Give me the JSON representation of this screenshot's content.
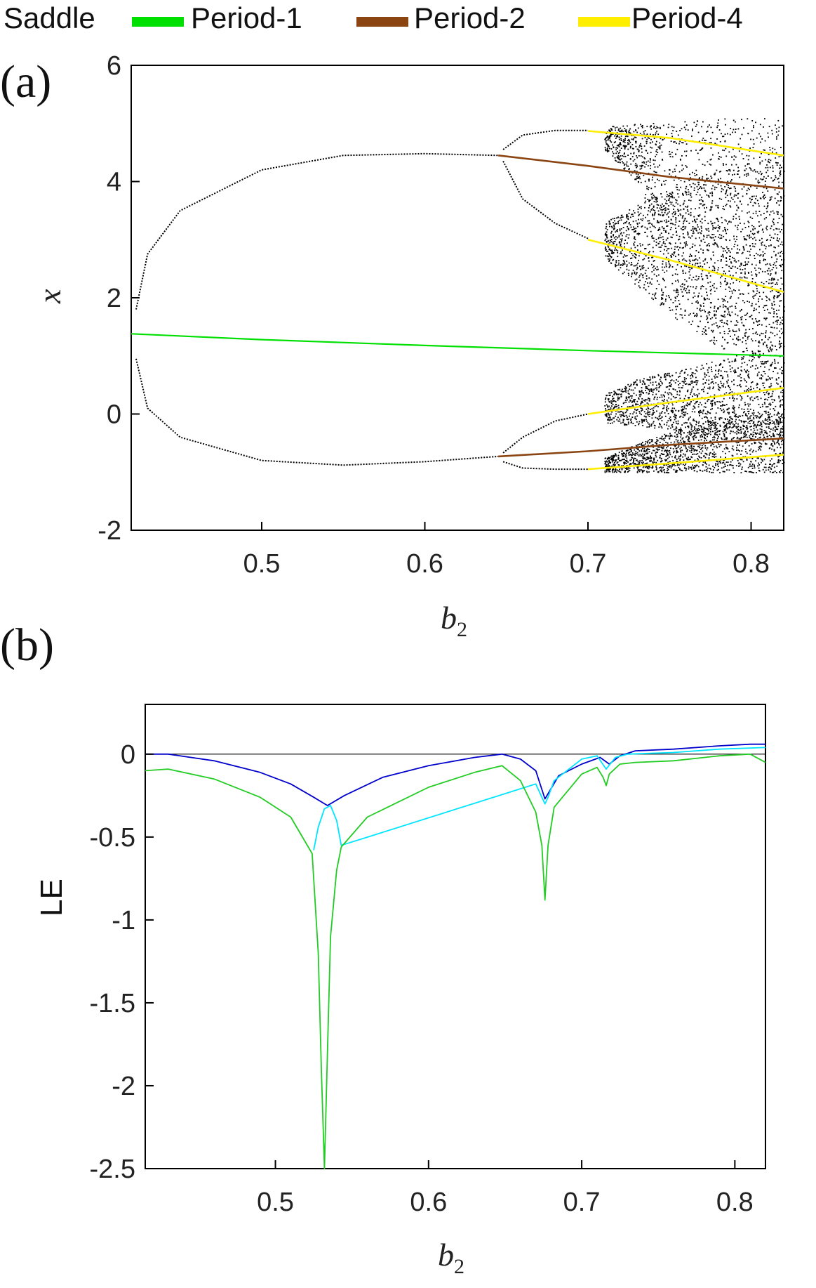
{
  "legend": {
    "items": [
      {
        "label": "Saddle",
        "color": ""
      },
      {
        "label": "Period-1",
        "color": "#00e000"
      },
      {
        "label": "Period-2",
        "color": "#8b4513"
      },
      {
        "label": "Period-4",
        "color": "#ffee00"
      }
    ]
  },
  "chart_data": [
    {
      "panel": "(a)",
      "type": "scatter",
      "xlabel_main": "b",
      "xlabel_sub": "2",
      "ylabel": "x",
      "xlim": [
        0.42,
        0.82
      ],
      "ylim": [
        -2,
        6
      ],
      "xticks": [
        "0.5",
        "0.6",
        "0.7",
        "0.8"
      ],
      "yticks": [
        "-2",
        "0",
        "2",
        "4",
        "6"
      ],
      "series": [
        {
          "name": "Period-1",
          "color": "#00e000",
          "x": [
            0.42,
            0.5,
            0.6,
            0.7,
            0.82
          ],
          "y": [
            1.38,
            1.28,
            1.18,
            1.09,
            1.0
          ]
        },
        {
          "name": "Period-2",
          "color": "#8b4513",
          "branch": "upper",
          "x": [
            0.645,
            0.7,
            0.75,
            0.82
          ],
          "y": [
            4.45,
            4.27,
            4.08,
            3.88
          ]
        },
        {
          "name": "Period-2",
          "color": "#8b4513",
          "branch": "lower",
          "x": [
            0.645,
            0.7,
            0.75,
            0.82
          ],
          "y": [
            -0.73,
            -0.64,
            -0.53,
            -0.42
          ]
        },
        {
          "name": "Period-4",
          "color": "#ffee00",
          "branch": "a",
          "x": [
            0.7,
            0.75,
            0.82
          ],
          "y": [
            4.87,
            4.75,
            4.45
          ]
        },
        {
          "name": "Period-4",
          "color": "#ffee00",
          "branch": "b",
          "x": [
            0.7,
            0.75,
            0.82
          ],
          "y": [
            3.0,
            2.65,
            2.1
          ]
        },
        {
          "name": "Period-4",
          "color": "#ffee00",
          "branch": "c",
          "x": [
            0.7,
            0.75,
            0.82
          ],
          "y": [
            0.0,
            0.2,
            0.45
          ]
        },
        {
          "name": "Period-4",
          "color": "#ffee00",
          "branch": "d",
          "x": [
            0.7,
            0.75,
            0.82
          ],
          "y": [
            -0.95,
            -0.85,
            -0.7
          ]
        },
        {
          "name": "stable-upper",
          "color": "#000000",
          "x": [
            0.423,
            0.43,
            0.45,
            0.5,
            0.55,
            0.6,
            0.645
          ],
          "y": [
            1.8,
            2.75,
            3.5,
            4.2,
            4.45,
            4.48,
            4.45
          ]
        },
        {
          "name": "stable-lower",
          "color": "#000000",
          "x": [
            0.423,
            0.43,
            0.45,
            0.5,
            0.55,
            0.6,
            0.645
          ],
          "y": [
            0.95,
            0.1,
            -0.4,
            -0.8,
            -0.88,
            -0.82,
            -0.73
          ]
        },
        {
          "name": "period2-upper-a",
          "color": "#000000",
          "x": [
            0.648,
            0.66,
            0.68,
            0.7
          ],
          "y": [
            4.55,
            4.8,
            4.88,
            4.88
          ]
        },
        {
          "name": "period2-upper-b",
          "color": "#000000",
          "x": [
            0.648,
            0.66,
            0.68,
            0.7
          ],
          "y": [
            4.35,
            3.7,
            3.28,
            3.02
          ]
        },
        {
          "name": "period2-lower-a",
          "color": "#000000",
          "x": [
            0.648,
            0.66,
            0.68,
            0.7
          ],
          "y": [
            -0.67,
            -0.4,
            -0.12,
            0.0
          ]
        },
        {
          "name": "period2-lower-b",
          "color": "#000000",
          "x": [
            0.648,
            0.66,
            0.68,
            0.7
          ],
          "y": [
            -0.82,
            -0.93,
            -0.95,
            -0.95
          ]
        }
      ],
      "chaos_bands": [
        {
          "x": [
            0.71,
            0.73,
            0.76,
            0.79,
            0.82
          ],
          "lo": [
            4.55,
            4.0,
            2.0,
            1.2,
            1.2
          ],
          "hi": [
            4.95,
            5.0,
            5.05,
            5.1,
            5.1
          ]
        },
        {
          "x": [
            0.71,
            0.73,
            0.76,
            0.79,
            0.82
          ],
          "lo": [
            2.7,
            2.2,
            1.5,
            1.0,
            1.0
          ],
          "hi": [
            3.3,
            3.6,
            4.0,
            4.3,
            4.4
          ]
        },
        {
          "x": [
            0.71,
            0.73,
            0.76,
            0.79,
            0.82
          ],
          "lo": [
            -0.15,
            -0.2,
            -0.3,
            -0.4,
            -0.5
          ],
          "hi": [
            0.35,
            0.6,
            0.8,
            1.0,
            1.2
          ]
        },
        {
          "x": [
            0.71,
            0.73,
            0.76,
            0.79,
            0.82
          ],
          "lo": [
            -1.0,
            -1.0,
            -1.0,
            -1.0,
            -1.0
          ],
          "hi": [
            -0.75,
            -0.5,
            -0.2,
            0.0,
            0.1
          ]
        }
      ]
    },
    {
      "panel": "(b)",
      "type": "line",
      "xlabel_main": "b",
      "xlabel_sub": "2",
      "ylabel": "LE",
      "xlim": [
        0.415,
        0.82
      ],
      "ylim": [
        -2.5,
        0.3
      ],
      "xticks": [
        "0.5",
        "0.6",
        "0.7",
        "0.8"
      ],
      "yticks": [
        "0",
        "-0.5",
        "-1",
        "-1.5",
        "-2",
        "-2.5"
      ],
      "series": [
        {
          "name": "LE1",
          "color": "#0000cc",
          "x": [
            0.415,
            0.43,
            0.46,
            0.49,
            0.51,
            0.525,
            0.534,
            0.545,
            0.57,
            0.6,
            0.63,
            0.648,
            0.66,
            0.67,
            0.676,
            0.685,
            0.7,
            0.712,
            0.718,
            0.725,
            0.735,
            0.76,
            0.79,
            0.81,
            0.82
          ],
          "y": [
            0.0,
            0.0,
            -0.04,
            -0.11,
            -0.18,
            -0.26,
            -0.31,
            -0.25,
            -0.14,
            -0.07,
            -0.02,
            0.0,
            -0.03,
            -0.1,
            -0.27,
            -0.13,
            -0.06,
            -0.02,
            -0.06,
            -0.01,
            0.02,
            0.03,
            0.05,
            0.06,
            0.06
          ]
        },
        {
          "name": "LE2",
          "color": "#00e5ff",
          "x": [
            0.525,
            0.528,
            0.532,
            0.536,
            0.54,
            0.543,
            0.67,
            0.674,
            0.676,
            0.678,
            0.682,
            0.7,
            0.71,
            0.716,
            0.722,
            0.73,
            0.76,
            0.79,
            0.82
          ],
          "y": [
            -0.58,
            -0.44,
            -0.33,
            -0.31,
            -0.4,
            -0.55,
            -0.18,
            -0.26,
            -0.3,
            -0.26,
            -0.16,
            -0.03,
            -0.01,
            -0.09,
            -0.02,
            0.0,
            0.01,
            0.03,
            0.04
          ]
        },
        {
          "name": "LE3",
          "color": "#22cc22",
          "x": [
            0.415,
            0.43,
            0.46,
            0.49,
            0.51,
            0.524,
            0.528,
            0.53,
            0.532,
            0.534,
            0.536,
            0.54,
            0.543,
            0.56,
            0.6,
            0.63,
            0.648,
            0.66,
            0.67,
            0.674,
            0.676,
            0.678,
            0.682,
            0.7,
            0.71,
            0.714,
            0.716,
            0.718,
            0.725,
            0.735,
            0.76,
            0.79,
            0.81,
            0.82
          ],
          "y": [
            -0.1,
            -0.09,
            -0.15,
            -0.26,
            -0.38,
            -0.6,
            -1.2,
            -1.9,
            -2.5,
            -1.8,
            -1.1,
            -0.7,
            -0.56,
            -0.38,
            -0.2,
            -0.11,
            -0.07,
            -0.16,
            -0.35,
            -0.55,
            -0.88,
            -0.55,
            -0.32,
            -0.12,
            -0.08,
            -0.14,
            -0.19,
            -0.12,
            -0.06,
            -0.05,
            -0.04,
            -0.01,
            0.0,
            -0.05
          ]
        }
      ]
    }
  ],
  "panels": {
    "a": {
      "label": "(a)"
    },
    "b": {
      "label": "(b)"
    }
  }
}
